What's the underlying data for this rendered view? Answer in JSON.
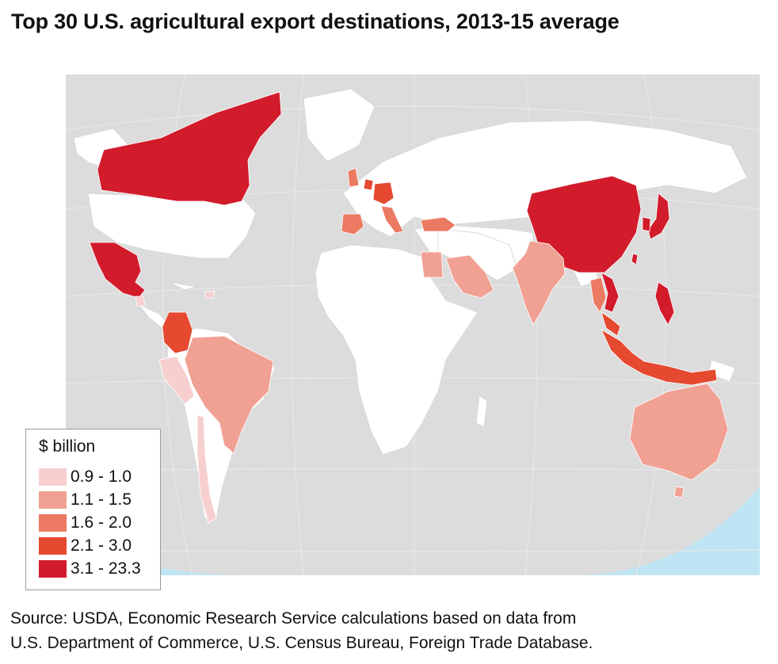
{
  "title": "Top 30 U.S. agricultural export destinations, 2013-15 average",
  "legend": {
    "title": "$ billion",
    "bins": [
      {
        "label": "0.9 - 1.0",
        "color": "#f8cfcf"
      },
      {
        "label": "1.1 - 1.5",
        "color": "#f0a193"
      },
      {
        "label": "1.6 - 2.0",
        "color": "#ec7a63"
      },
      {
        "label": "2.1 - 3.0",
        "color": "#e5492f"
      },
      {
        "label": "3.1 - 23.3",
        "color": "#d21b2b"
      }
    ]
  },
  "colors": {
    "ocean": "#bfe4f3",
    "land_background": "#dedede",
    "non_top30": "#ffffff",
    "borders": "#d8d8d8"
  },
  "source": {
    "line1": "Source: USDA, Economic Research Service calculations based on data from",
    "line2": "U.S. Department of Commerce, U.S. Census Bureau, Foreign Trade Database."
  }
}
